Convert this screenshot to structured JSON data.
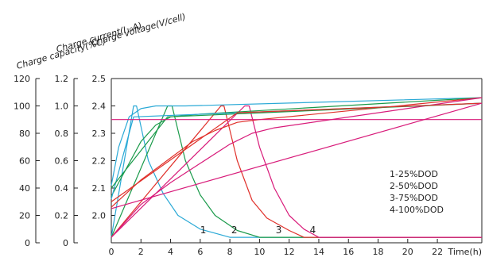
{
  "chart_data": {
    "type": "line",
    "title": "",
    "axes": {
      "capacity": {
        "label": "Charge capacity(%C)",
        "ticks": [
          "0",
          "20",
          "40",
          "60",
          "80",
          "100",
          "120"
        ],
        "range": [
          0,
          120
        ]
      },
      "current": {
        "label": "Charge current(I₁₀A)",
        "ticks": [
          "0",
          "0.2",
          "0.4",
          "0.6",
          "0.8",
          "1.0",
          "1.2"
        ],
        "range": [
          0,
          1.2
        ]
      },
      "voltage": {
        "label": "Charge voltage(V/cell)",
        "ticks": [
          "2.0",
          "2.1",
          "2.2",
          "2.3",
          "2.4",
          "2.5"
        ],
        "range": [
          1.9,
          2.5
        ]
      },
      "time": {
        "label": "Time(h)",
        "ticks": [
          "0",
          "2",
          "4",
          "6",
          "8",
          "10",
          "12",
          "14",
          "16",
          "18",
          "20",
          "22"
        ],
        "range": [
          0,
          25
        ]
      }
    },
    "legend": [
      "1-25%DOD",
      "2-50%DOD",
      "3-75%DOD",
      "4-100%DOD"
    ],
    "curve_labels": [
      {
        "text": "1",
        "x": 6.2,
        "y": 0.07
      },
      {
        "text": "2",
        "x": 8.3,
        "y": 0.07
      },
      {
        "text": "3",
        "x": 11.3,
        "y": 0.07
      },
      {
        "text": "4",
        "x": 13.6,
        "y": 0.07
      }
    ],
    "colors": {
      "dod25": "#2aa9d6",
      "dod50": "#1a9a4a",
      "dod75": "#e0302a",
      "dod100": "#d81b7a",
      "axis": "#222222"
    },
    "series": [
      {
        "kind": "current",
        "color": "#2aa9d6",
        "points": [
          [
            0,
            0.04
          ],
          [
            1.5,
            1.0
          ],
          [
            1.7,
            1.0
          ],
          [
            2.5,
            0.6
          ],
          [
            3.5,
            0.36
          ],
          [
            4.5,
            0.2
          ],
          [
            6,
            0.1
          ],
          [
            8,
            0.04
          ],
          [
            25,
            0.04
          ]
        ]
      },
      {
        "kind": "current",
        "color": "#1a9a4a",
        "points": [
          [
            0,
            0.04
          ],
          [
            3.8,
            1.0
          ],
          [
            4.1,
            1.0
          ],
          [
            5,
            0.6
          ],
          [
            6,
            0.35
          ],
          [
            7,
            0.2
          ],
          [
            8.5,
            0.09
          ],
          [
            10,
            0.04
          ],
          [
            25,
            0.04
          ]
        ]
      },
      {
        "kind": "current",
        "color": "#e0302a",
        "points": [
          [
            0,
            0.04
          ],
          [
            7.4,
            1.0
          ],
          [
            7.6,
            1.0
          ],
          [
            8.5,
            0.6
          ],
          [
            9.5,
            0.31
          ],
          [
            10.5,
            0.18
          ],
          [
            12,
            0.09
          ],
          [
            13,
            0.04
          ],
          [
            25,
            0.04
          ]
        ]
      },
      {
        "kind": "current",
        "color": "#d81b7a",
        "points": [
          [
            0,
            0.04
          ],
          [
            9,
            1.0
          ],
          [
            9.3,
            1.0
          ],
          [
            10,
            0.7
          ],
          [
            11,
            0.4
          ],
          [
            12,
            0.2
          ],
          [
            13,
            0.1
          ],
          [
            14,
            0.04
          ],
          [
            25,
            0.04
          ]
        ]
      },
      {
        "kind": "voltage",
        "color": "#2aa9d6",
        "points": [
          [
            0,
            2.11
          ],
          [
            0.5,
            2.25
          ],
          [
            1.2,
            2.36
          ],
          [
            2,
            2.39
          ],
          [
            3,
            2.4
          ],
          [
            5,
            2.4
          ],
          [
            25,
            2.43
          ]
        ]
      },
      {
        "kind": "voltage",
        "color": "#1a9a4a",
        "points": [
          [
            0,
            2.07
          ],
          [
            1,
            2.17
          ],
          [
            2,
            2.27
          ],
          [
            3,
            2.33
          ],
          [
            4,
            2.36
          ],
          [
            6,
            2.37
          ],
          [
            25,
            2.43
          ]
        ]
      },
      {
        "kind": "voltage",
        "color": "#e0302a",
        "points": [
          [
            0,
            2.03
          ],
          [
            2,
            2.13
          ],
          [
            4,
            2.21
          ],
          [
            5.5,
            2.27
          ],
          [
            7,
            2.31
          ],
          [
            8.5,
            2.34
          ],
          [
            10,
            2.35
          ],
          [
            25,
            2.43
          ]
        ]
      },
      {
        "kind": "voltage",
        "color": "#d81b7a",
        "points": [
          [
            0,
            1.92
          ],
          [
            2,
            2.04
          ],
          [
            4,
            2.12
          ],
          [
            6,
            2.19
          ],
          [
            8,
            2.26
          ],
          [
            9.5,
            2.3
          ],
          [
            11,
            2.32
          ],
          [
            25,
            2.43
          ]
        ]
      },
      {
        "kind": "capacity",
        "color": "#2aa9d6",
        "points": [
          [
            0,
            32
          ],
          [
            1.5,
            92
          ],
          [
            25,
            102
          ]
        ]
      },
      {
        "kind": "capacity",
        "color": "#1a9a4a",
        "points": [
          [
            0,
            40
          ],
          [
            3.8,
            92
          ],
          [
            25,
            102
          ]
        ]
      },
      {
        "kind": "capacity",
        "color": "#e0302a",
        "points": [
          [
            0,
            30
          ],
          [
            8.5,
            95
          ],
          [
            25,
            102
          ]
        ]
      },
      {
        "kind": "capacity",
        "color": "#d81b7a",
        "points": [
          [
            0,
            25
          ],
          [
            25,
            102
          ]
        ]
      },
      {
        "kind": "voltage",
        "color": "#d81b7a",
        "points": [
          [
            0,
            2.35
          ],
          [
            25,
            2.35
          ]
        ]
      }
    ]
  }
}
